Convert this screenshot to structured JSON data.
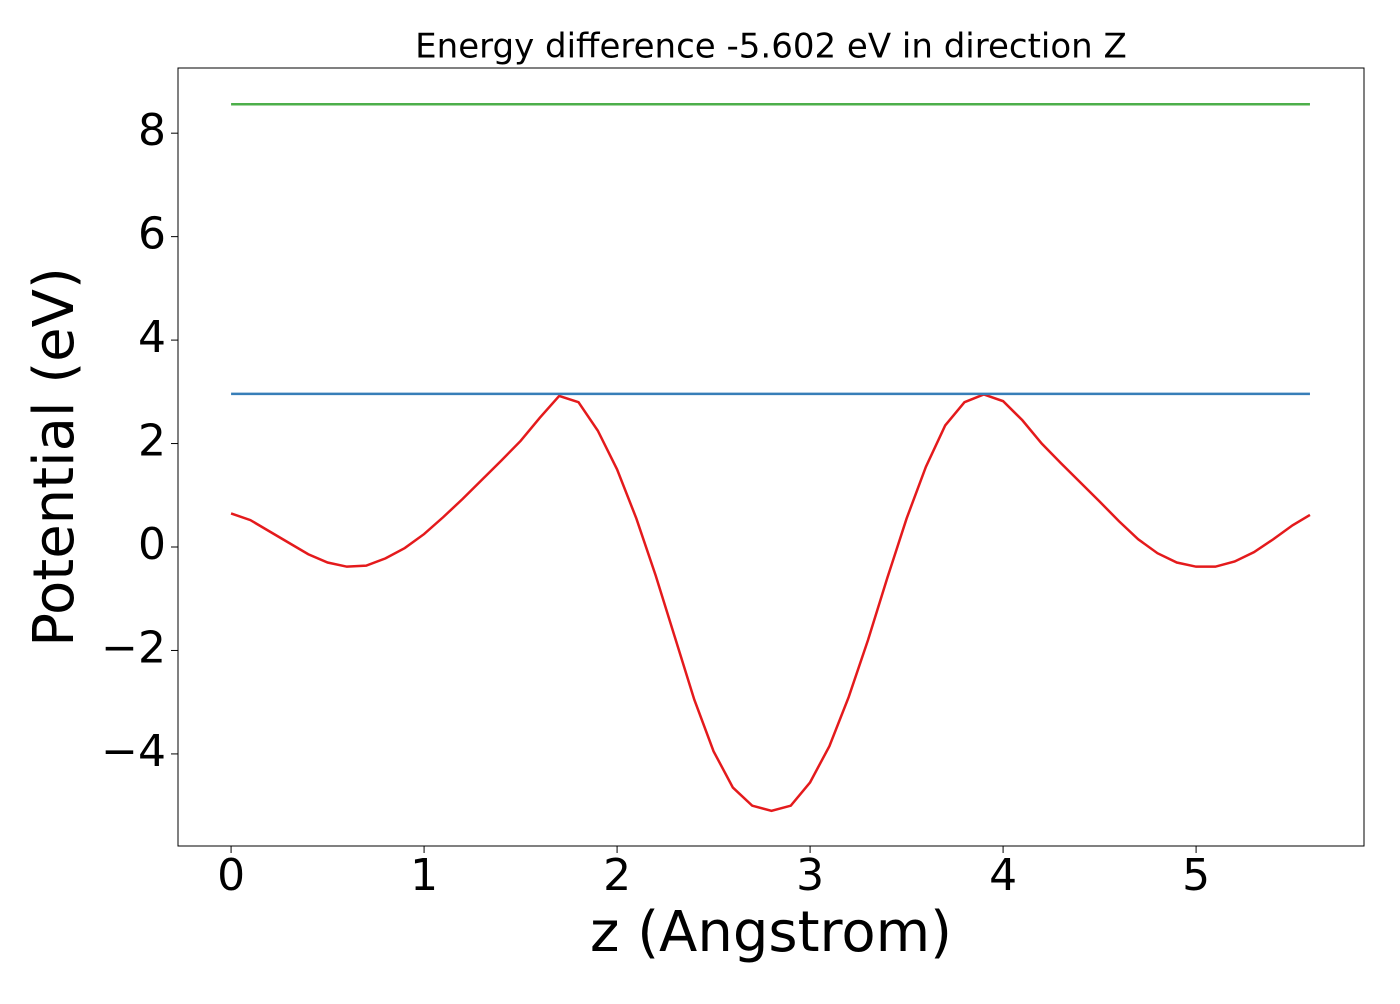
{
  "chart_data": {
    "type": "line",
    "title": "Energy difference -5.602 eV in direction Z",
    "x_label": "z (Angstrom)",
    "y_label": "Potential (eV)",
    "xlim": [
      -0.275,
      5.87
    ],
    "ylim": [
      -5.78,
      9.26
    ],
    "xticks": [
      0,
      1,
      2,
      3,
      4,
      5
    ],
    "yticks": [
      {
        "value": -4,
        "label": "−4"
      },
      {
        "value": -2,
        "label": "−2"
      },
      0,
      2,
      4,
      6,
      8
    ],
    "series": [
      {
        "color": "#e41a1c",
        "x": [
          0.0,
          0.1,
          0.2,
          0.3,
          0.4,
          0.5,
          0.6,
          0.7,
          0.8,
          0.9,
          1.0,
          1.1,
          1.2,
          1.3,
          1.4,
          1.5,
          1.6,
          1.7,
          1.8,
          1.9,
          2.0,
          2.1,
          2.2,
          2.3,
          2.4,
          2.5,
          2.6,
          2.7,
          2.8,
          2.9,
          3.0,
          3.1,
          3.2,
          3.3,
          3.4,
          3.5,
          3.6,
          3.7,
          3.8,
          3.9,
          4.0,
          4.1,
          4.2,
          4.3,
          4.4,
          4.5,
          4.6,
          4.7,
          4.8,
          4.9,
          5.0,
          5.1,
          5.2,
          5.3,
          5.4,
          5.5,
          5.59
        ],
        "values": [
          0.65,
          0.52,
          0.3,
          0.08,
          -0.14,
          -0.3,
          -0.38,
          -0.36,
          -0.22,
          -0.02,
          0.25,
          0.58,
          0.93,
          1.3,
          1.67,
          2.05,
          2.5,
          2.92,
          2.8,
          2.25,
          1.5,
          0.55,
          -0.55,
          -1.75,
          -2.95,
          -3.95,
          -4.65,
          -5.0,
          -5.1,
          -5.0,
          -4.55,
          -3.85,
          -2.9,
          -1.8,
          -0.6,
          0.55,
          1.55,
          2.35,
          2.8,
          2.95,
          2.82,
          2.45,
          2.0,
          1.62,
          1.25,
          0.88,
          0.5,
          0.15,
          -0.12,
          -0.3,
          -0.38,
          -0.38,
          -0.28,
          -0.1,
          0.15,
          0.42,
          0.62
        ]
      },
      {
        "color": "#377eb8",
        "x": [
          0.0,
          5.59
        ],
        "values": [
          2.96,
          2.96
        ]
      },
      {
        "color": "#4daf4a",
        "x": [
          0.0,
          5.59
        ],
        "values": [
          8.56,
          8.56
        ]
      }
    ]
  }
}
